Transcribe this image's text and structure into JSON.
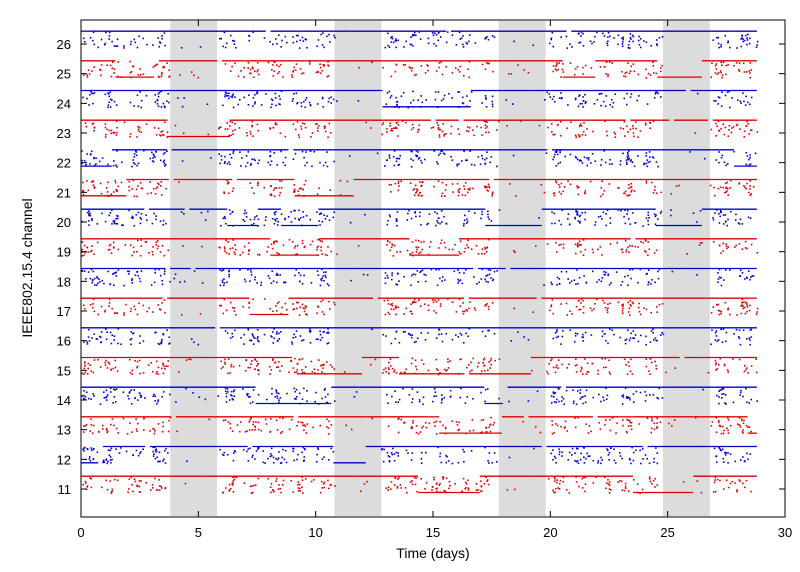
{
  "chart_data": {
    "type": "scatter",
    "title": "",
    "xlabel": "Time (days)",
    "ylabel": "IEEE802.15.4 channel",
    "xlim": [
      0,
      30
    ],
    "xticks": [
      0,
      5,
      10,
      15,
      20,
      25,
      30
    ],
    "channels": [
      11,
      12,
      13,
      14,
      15,
      16,
      17,
      18,
      19,
      20,
      21,
      22,
      23,
      24,
      25,
      26
    ],
    "grid": false,
    "legend": "none",
    "series_colors": {
      "odd_channels": "#dd0000",
      "even_channels": "#0000cc"
    },
    "shaded_bands": [
      [
        3.8,
        5.8
      ],
      [
        10.8,
        12.8
      ],
      [
        17.8,
        19.8
      ],
      [
        24.8,
        26.8
      ]
    ],
    "shade_color": "#dcdcdc",
    "data_range_days": [
      0,
      28.8
    ]
  }
}
